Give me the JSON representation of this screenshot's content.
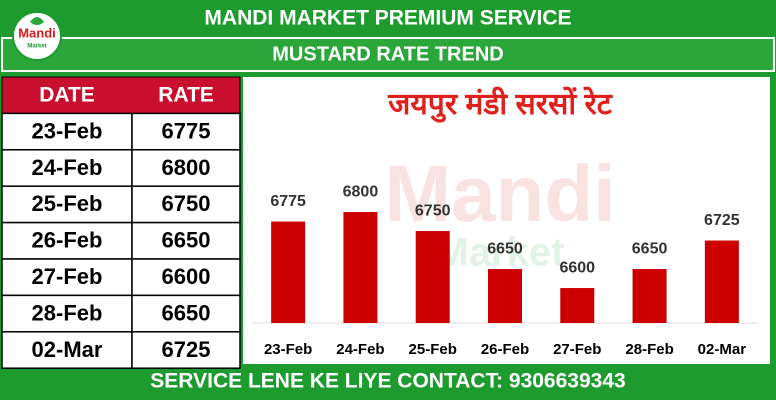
{
  "header": {
    "title": "MANDI MARKET PREMIUM SERVICE",
    "subtitle": "MUSTARD RATE TREND"
  },
  "logo": {
    "text": "Mandi",
    "subtext": "Market"
  },
  "table": {
    "headers": [
      "DATE",
      "RATE"
    ]
  },
  "chart_data": {
    "type": "bar",
    "title": "जयपुर मंडी सरसों रेट",
    "categories": [
      "23-Feb",
      "24-Feb",
      "25-Feb",
      "26-Feb",
      "27-Feb",
      "28-Feb",
      "02-Mar"
    ],
    "values": [
      6775,
      6800,
      6750,
      6650,
      6600,
      6650,
      6725
    ],
    "color": "#cc0000",
    "ylim": [
      6508,
      6858
    ]
  },
  "footer": {
    "text": "SERVICE LENE KE LIYE CONTACT: 9306639343"
  }
}
